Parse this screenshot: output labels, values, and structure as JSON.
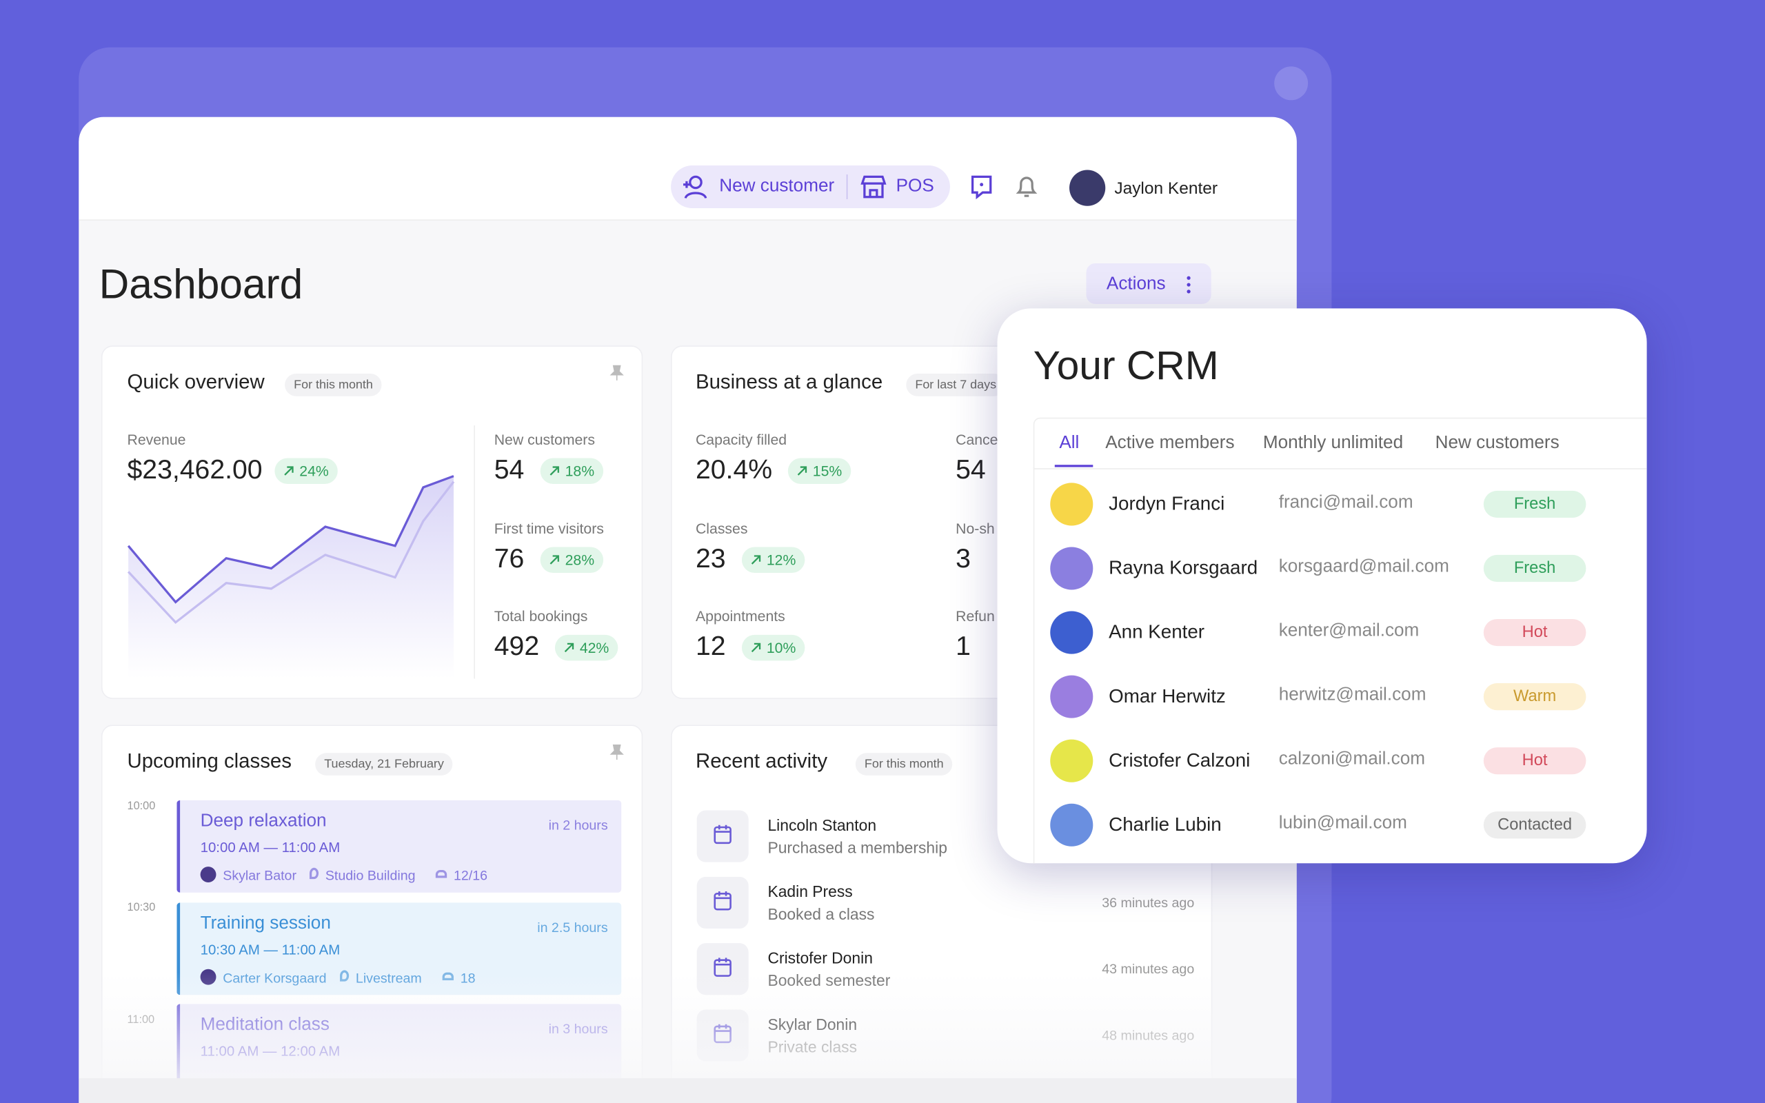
{
  "header": {
    "new_customer": "New customer",
    "pos": "POS",
    "user_name": "Jaylon Kenter"
  },
  "page": {
    "title": "Dashboard",
    "actions": "Actions"
  },
  "quick_overview": {
    "title": "Quick overview",
    "period": "For this month",
    "revenue": {
      "label": "Revenue",
      "value": "$23,462.00",
      "change": "24%"
    },
    "stats": [
      {
        "label": "New customers",
        "value": "54",
        "change": "18%"
      },
      {
        "label": "First time visitors",
        "value": "76",
        "change": "28%"
      },
      {
        "label": "Total bookings",
        "value": "492",
        "change": "42%"
      }
    ]
  },
  "business": {
    "title": "Business at a glance",
    "period": "For last 7 days",
    "stats": [
      {
        "label": "Capacity filled",
        "value": "20.4%",
        "change": "15%"
      },
      {
        "label": "Classes",
        "value": "23",
        "change": "12%"
      },
      {
        "label": "Appointments",
        "value": "12",
        "change": "10%"
      }
    ],
    "stats_right": [
      {
        "label": "Cance",
        "value": "54"
      },
      {
        "label": "No-sh",
        "value": "3"
      },
      {
        "label": "Refun",
        "value": "1"
      }
    ]
  },
  "upcoming": {
    "title": "Upcoming classes",
    "date": "Tuesday, 21 February",
    "times": [
      "10:00",
      "10:30",
      "11:00"
    ],
    "classes": [
      {
        "name": "Deep relaxation",
        "eta": "in 2 hours",
        "time": "10:00 AM — 11:00 AM",
        "instructor": "Skylar Bator",
        "location": "Studio Building",
        "capacity": "12/16",
        "color": "#6a5bd6",
        "bg": "#ecebfb"
      },
      {
        "name": "Training session",
        "eta": "in 2.5 hours",
        "time": "10:30 AM — 11:00 AM",
        "instructor": "Carter Korsgaard",
        "location": "Livestream",
        "capacity": "18",
        "color": "#3a8fd6",
        "bg": "#e8f3fc"
      },
      {
        "name": "Meditation class",
        "eta": "in 3 hours",
        "time": "11:00 AM — 12:00 AM",
        "color": "#6a5bd6",
        "bg": "#ecebfb"
      }
    ]
  },
  "recent": {
    "title": "Recent activity",
    "period": "For this month",
    "items": [
      {
        "name": "Lincoln Stanton",
        "action": "Purchased a membership"
      },
      {
        "name": "Kadin Press",
        "action": "Booked a class",
        "time": "36 minutes ago"
      },
      {
        "name": "Cristofer Donin",
        "action": "Booked semester",
        "time": "43 minutes ago"
      },
      {
        "name": "Skylar Donin",
        "action": "Private class",
        "time": "48 minutes ago"
      }
    ]
  },
  "crm": {
    "title": "Your CRM",
    "tabs": [
      "All",
      "Active members",
      "Monthly unlimited",
      "New customers"
    ],
    "active_tab": 0,
    "contacts": [
      {
        "name": "Jordyn Franci",
        "email": "franci@mail.com",
        "status": "Fresh",
        "status_color": "green"
      },
      {
        "name": "Rayna Korsgaard",
        "email": "korsgaard@mail.com",
        "status": "Fresh",
        "status_color": "green"
      },
      {
        "name": "Ann Kenter",
        "email": "kenter@mail.com",
        "status": "Hot",
        "status_color": "red"
      },
      {
        "name": "Omar Herwitz",
        "email": "herwitz@mail.com",
        "status": "Warm",
        "status_color": "yellow"
      },
      {
        "name": "Cristofer Calzoni",
        "email": "calzoni@mail.com",
        "status": "Hot",
        "status_color": "red"
      },
      {
        "name": "Charlie Lubin",
        "email": "lubin@mail.com",
        "status": "Contacted",
        "status_color": "gray"
      }
    ]
  }
}
